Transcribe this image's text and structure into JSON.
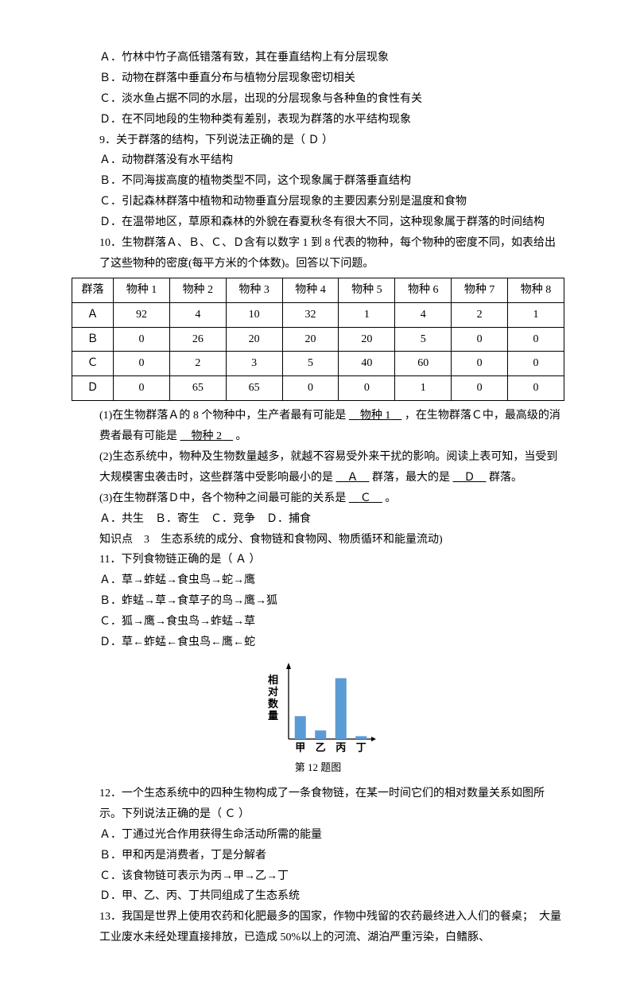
{
  "q8": {
    "a": "Ａ．竹林中竹子高低错落有致，其在垂直结构上有分层现象",
    "b": "Ｂ．动物在群落中垂直分布与植物分层现象密切相关",
    "c": "Ｃ．淡水鱼占据不同的水层，出现的分层现象与各种鱼的食性有关",
    "d": "Ｄ．在不同地段的生物种类有差别，表现为群落的水平结构现象"
  },
  "q9": {
    "stem1": "9．关于群落的结构，下列说法正确的是（",
    "ans": "Ｄ",
    "stem2": "）",
    "a": "Ａ．动物群落没有水平结构",
    "b": "Ｂ．不同海拔高度的植物类型不同，这个现象属于群落垂直结构",
    "c": "Ｃ．引起森林群落中植物和动物垂直分层现象的主要因素分别是温度和食物",
    "d": "Ｄ．在温带地区，草原和森林的外貌在春夏秋冬有很大不同，这种现象属于群落的时间结构"
  },
  "q10": {
    "stem": "10．生物群落Ａ、Ｂ、Ｃ、Ｄ含有以数字 1 到 8 代表的物种，每个物种的密度不同，如表给出了这些物种的密度(每平方米的个体数)。回答以下问题。",
    "table": {
      "headers": [
        "群落",
        "物种 1",
        "物种 2",
        "物种 3",
        "物种 4",
        "物种 5",
        "物种 6",
        "物种 7",
        "物种 8"
      ],
      "rows": [
        [
          "Ａ",
          "92",
          "4",
          "10",
          "32",
          "1",
          "4",
          "2",
          "1"
        ],
        [
          "Ｂ",
          "0",
          "26",
          "20",
          "20",
          "20",
          "5",
          "0",
          "0"
        ],
        [
          "Ｃ",
          "0",
          "2",
          "3",
          "5",
          "40",
          "60",
          "0",
          "0"
        ],
        [
          "Ｄ",
          "0",
          "65",
          "65",
          "0",
          "0",
          "1",
          "0",
          "0"
        ]
      ]
    },
    "p1a": "(1)在生物群落Ａ的 8 个物种中，生产者最有可能是",
    "p1ans1": "物种 1",
    "p1b": "，在生物群落Ｃ中，最高级的消费者最有可能是",
    "p1ans2": "物种 2",
    "p1c": "。",
    "p2a": "(2)生态系统中，物种及生物数量越多，就越不容易受外来干扰的影响。阅读上表可知，当受到大规模害虫袭击时，这些群落中受影响最小的是",
    "p2ans1": "Ａ",
    "p2b": "群落，最大的是",
    "p2ans2": "Ｄ",
    "p2c": "群落。",
    "p3a": "(3)在生物群落Ｄ中，各个物种之间最可能的关系是",
    "p3ans": "Ｃ",
    "p3b": "。",
    "opts": "Ａ．共生　Ｂ．寄生　Ｃ．竞争　Ｄ．捕食"
  },
  "kp": "知识点　3　生态系统的成分、食物链和食物网、物质循环和能量流动)",
  "q11": {
    "stem1": "11．下列食物链正确的是（",
    "ans": "Ａ",
    "stem2": "）",
    "a": "Ａ．草→蚱蜢→食虫鸟→蛇→鹰",
    "b": "Ｂ．蚱蜢→草→食草子的鸟→鹰→狐",
    "c": "Ｃ．狐→鹰→食虫鸟→蚱蜢→草",
    "d": "Ｄ．草←蚱蜢←食虫鸟←鹰←蛇"
  },
  "chart": {
    "ylabel": "相对数量",
    "categories": [
      "甲",
      "乙",
      "丙",
      "丁"
    ],
    "values": [
      32,
      12,
      85,
      4
    ],
    "bar_color": "#5b9bd5",
    "axis_color": "#000",
    "width": 150,
    "height": 120,
    "caption": "第 12 题图"
  },
  "q12": {
    "stem1": "12．一个生态系统中的四种生物构成了一条食物链，在某一时间它们的相对数量关系如图所示。下列说法正确的是（",
    "ans": "Ｃ",
    "stem2": "）",
    "a": "Ａ．丁通过光合作用获得生命活动所需的能量",
    "b": "Ｂ．甲和丙是消费者，丁是分解者",
    "c": "Ｃ．该食物链可表示为丙→甲→乙→丁",
    "d": "Ｄ．甲、乙、丙、丁共同组成了生态系统"
  },
  "q13": {
    "stem": "13．我国是世界上使用农药和化肥最多的国家，作物中残留的农药最终进入人们的餐桌；　大量工业废水未经处理直接排放，已造成 50%以上的河流、湖泊严重污染，白鳍豚、"
  }
}
